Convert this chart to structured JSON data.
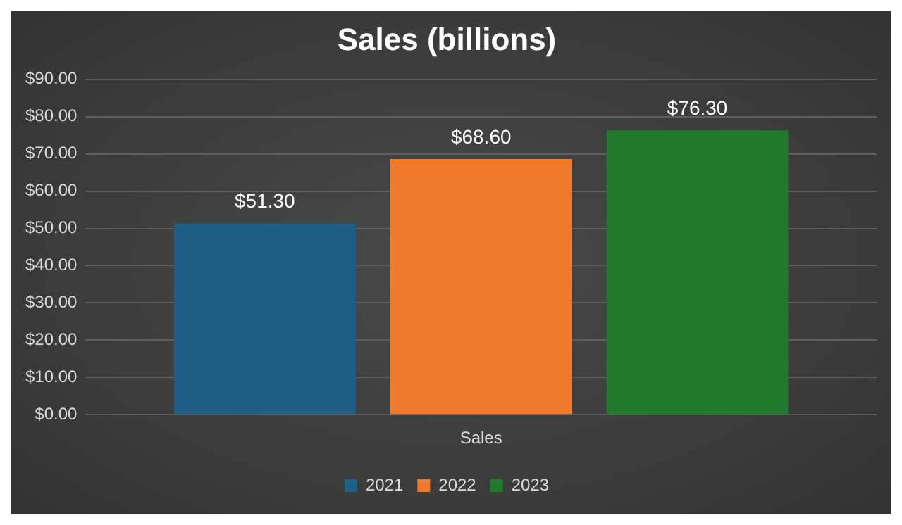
{
  "chart_data": {
    "type": "bar",
    "title": "Sales (billions)",
    "categories": [
      "Sales"
    ],
    "series": [
      {
        "name": "2021",
        "color": "#1f5f86",
        "values": [
          51.3
        ],
        "value_labels": [
          "$51.30"
        ]
      },
      {
        "name": "2022",
        "color": "#f07a2c",
        "values": [
          68.6
        ],
        "value_labels": [
          "$68.60"
        ]
      },
      {
        "name": "2023",
        "color": "#217a2c",
        "values": [
          76.3
        ],
        "value_labels": [
          "$76.30"
        ]
      }
    ],
    "ylim": [
      0,
      90
    ],
    "yticks": [
      {
        "value": 0,
        "label": "$0.00"
      },
      {
        "value": 10,
        "label": "$10.00"
      },
      {
        "value": 20,
        "label": "$20.00"
      },
      {
        "value": 30,
        "label": "$30.00"
      },
      {
        "value": 40,
        "label": "$40.00"
      },
      {
        "value": 50,
        "label": "$50.00"
      },
      {
        "value": 60,
        "label": "$60.00"
      },
      {
        "value": 70,
        "label": "$70.00"
      },
      {
        "value": 80,
        "label": "$80.00"
      },
      {
        "value": 90,
        "label": "$90.00"
      }
    ],
    "grid": "y",
    "legend": "bottom"
  }
}
